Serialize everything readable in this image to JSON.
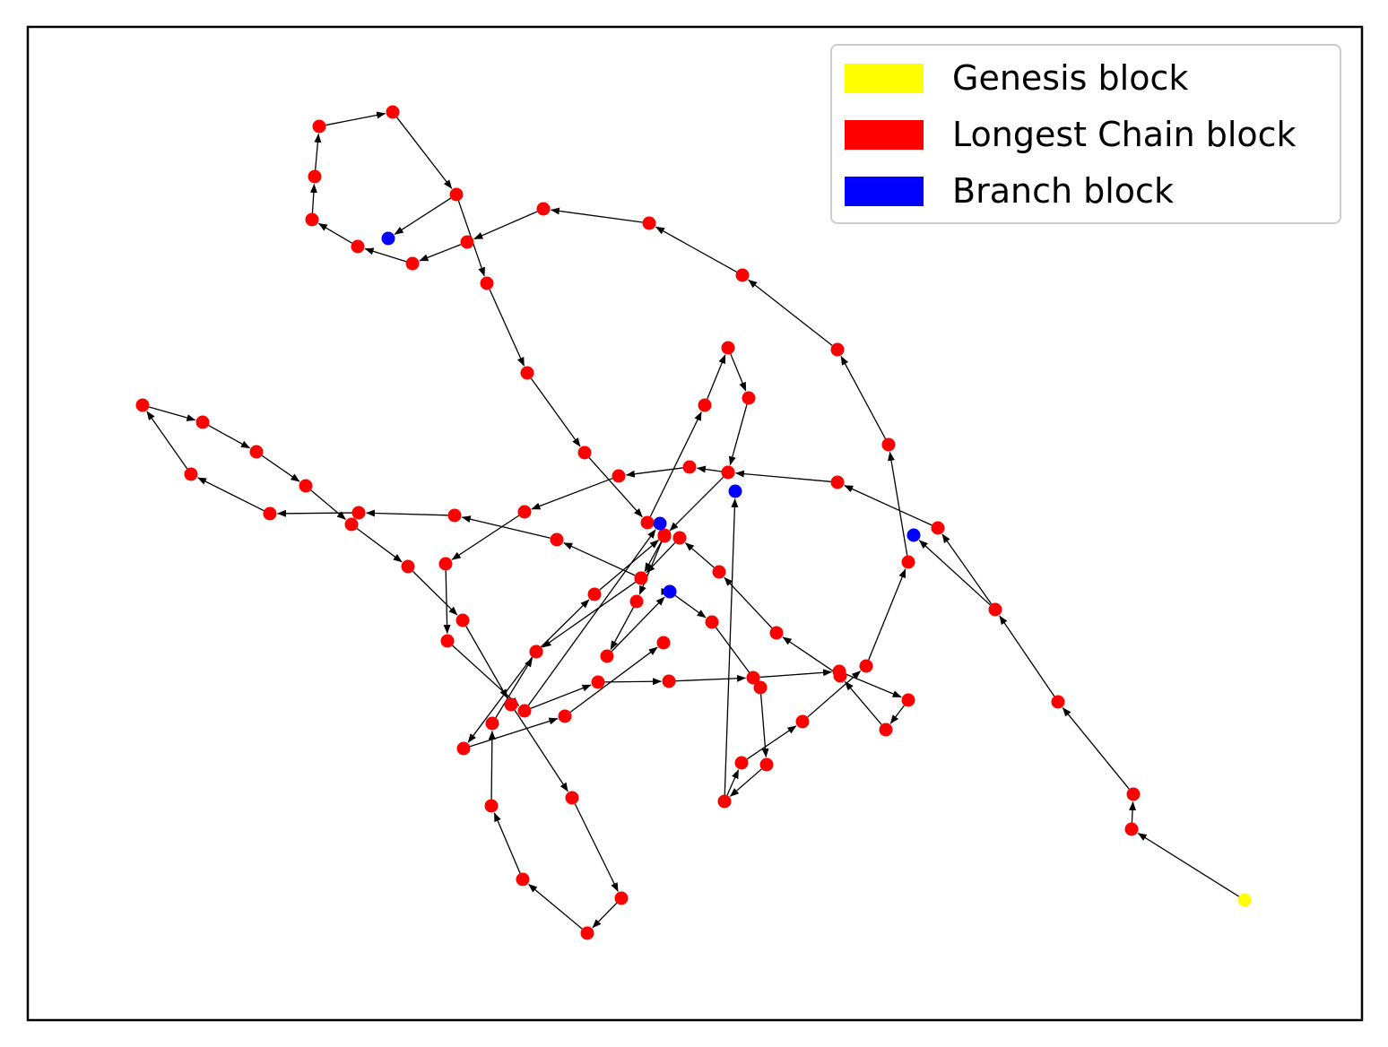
{
  "legend": {
    "items": [
      {
        "label": "Genesis block",
        "color": "#ffff00"
      },
      {
        "label": "Longest Chain block",
        "color": "#ff0000"
      },
      {
        "label": "Branch block",
        "color": "#0000ff"
      }
    ]
  },
  "graph": {
    "node_colors": {
      "genesis": "#ffff00",
      "chain": "#ff0000",
      "branch": "#0000ff"
    },
    "edge_color": "#000000",
    "chain": [
      "genesis",
      "c1",
      "c2",
      "c3",
      "c4",
      "c5",
      "c6",
      "c7",
      "c8",
      "c9",
      "c10",
      "c11",
      "c12",
      "c13",
      "c14",
      "c15",
      "c16",
      "c17",
      "c18",
      "c19",
      "c20",
      "c21",
      "c22",
      "c23",
      "c24",
      "c25",
      "c26",
      "c27",
      "c28",
      "c29",
      "c30",
      "c31",
      "c32",
      "c33",
      "c34",
      "c35",
      "c36",
      "c37",
      "c38",
      "c39",
      "c40",
      "c41",
      "c42",
      "c43",
      "c44",
      "c45",
      "c46",
      "c47",
      "c48",
      "c49",
      "c50",
      "c51",
      "c52",
      "c53",
      "c54",
      "c55",
      "c56",
      "c57",
      "c58",
      "c59",
      "c60",
      "c61",
      "c62",
      "c63",
      "c64",
      "c65",
      "c66",
      "c67",
      "c68",
      "c69",
      "c70",
      "c71",
      "c72",
      "c73",
      "c74",
      "c75",
      "c76",
      "c77",
      "c78",
      "c79",
      "c80",
      "c81",
      "c82",
      "c83",
      "c84",
      "c85",
      "c86",
      "c87",
      "c88",
      "c89",
      "c90",
      "c91",
      "c92"
    ],
    "branches": [
      {
        "id": "b1",
        "parent": "c49"
      },
      {
        "id": "b2",
        "parent": "c4"
      },
      {
        "id": "b3",
        "parent": "c53"
      },
      {
        "id": "b4",
        "parent": "c70"
      },
      {
        "id": "b5",
        "parent": "c86"
      }
    ]
  }
}
